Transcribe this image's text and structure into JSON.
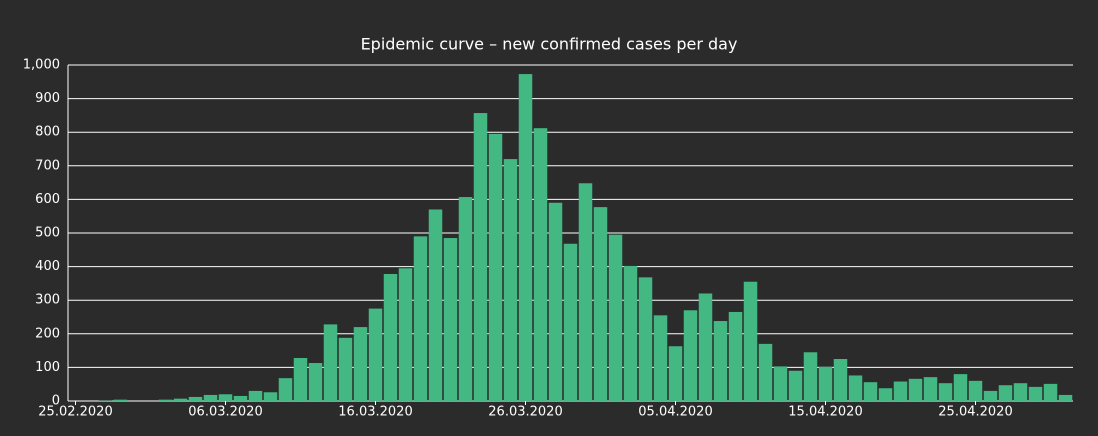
{
  "chart_data": {
    "type": "bar",
    "title": "Epidemic curve – new confirmed cases per day",
    "categories": [
      "25.02.2020",
      null,
      null,
      null,
      null,
      null,
      null,
      null,
      null,
      null,
      "06.03.2020",
      null,
      null,
      null,
      null,
      null,
      null,
      null,
      null,
      null,
      "16.03.2020",
      null,
      null,
      null,
      null,
      null,
      null,
      null,
      null,
      null,
      "26.03.2020",
      null,
      null,
      null,
      null,
      null,
      null,
      null,
      null,
      null,
      "05.04.2020",
      null,
      null,
      null,
      null,
      null,
      null,
      null,
      null,
      null,
      "15.04.2020",
      null,
      null,
      null,
      null,
      null,
      null,
      null,
      null,
      null,
      "25.04.2020",
      null,
      null,
      null,
      null,
      null,
      null
    ],
    "values": [
      0,
      0,
      1,
      4,
      0,
      0,
      4,
      7,
      12,
      18,
      20,
      15,
      30,
      26,
      68,
      128,
      113,
      228,
      188,
      220,
      275,
      378,
      395,
      490,
      570,
      485,
      607,
      857,
      795,
      720,
      973,
      812,
      590,
      468,
      648,
      577,
      495,
      402,
      368,
      255,
      163,
      270,
      320,
      238,
      265,
      355,
      170,
      103,
      90,
      145,
      102,
      125,
      76,
      56,
      38,
      58,
      66,
      71,
      53,
      80,
      60,
      30,
      47,
      53,
      42,
      51,
      18
    ],
    "color": "#43b883",
    "ylim": [
      0,
      1000
    ],
    "yticks": [
      0,
      100,
      200,
      300,
      400,
      500,
      600,
      700,
      800,
      900,
      {
        "value": 1000,
        "label": "1,000"
      }
    ],
    "grid": true
  }
}
